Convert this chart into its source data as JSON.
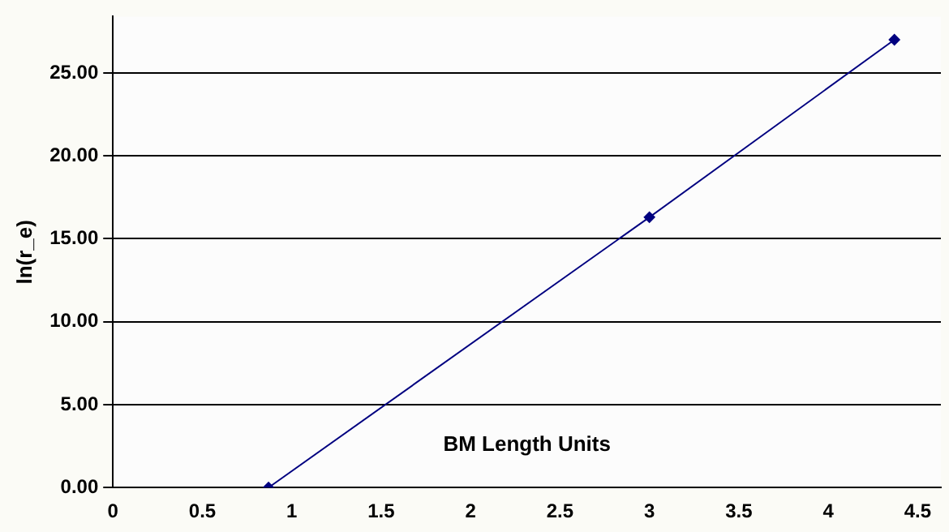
{
  "chart_data": {
    "type": "line",
    "xlabel": "BM Length Units",
    "ylabel": "ln(r_e)",
    "x": [
      0.87,
      3.0,
      4.37
    ],
    "series": [
      {
        "color": "#000080",
        "values": [
          0,
          16.3,
          27.0
        ]
      }
    ],
    "xlim": [
      0,
      4.63
    ],
    "xticks": [
      0,
      0.5,
      1,
      1.5,
      2,
      2.5,
      3,
      3.5,
      4,
      4.5
    ],
    "ylim": [
      0,
      28.4
    ],
    "yticks": [
      {
        "value": 0,
        "label": "0.00"
      },
      {
        "value": 5,
        "label": "5.00"
      },
      {
        "value": 10,
        "label": "10.00"
      },
      {
        "value": 15,
        "label": "15.00"
      },
      {
        "value": 20,
        "label": "20.00"
      },
      {
        "value": 25,
        "label": "25.00"
      }
    ],
    "grid": "y",
    "legend": false,
    "marker": "diamond",
    "line_style": "solid"
  }
}
